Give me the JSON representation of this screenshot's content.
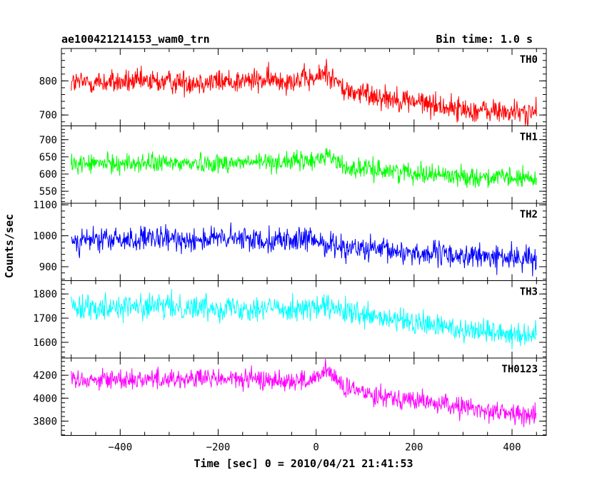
{
  "header": {
    "title": "ae100421214153_wam0_trn",
    "bin_time": "Bin time: 1.0 s"
  },
  "chart_data": {
    "type": "line",
    "title": "ae100421214153_wam0_trn",
    "bin_time_label": "Bin time: 1.0 s",
    "xlabel": "Time [sec] 0 = 2010/04/21 21:41:53",
    "ylabel": "Counts/sec",
    "xlim": [
      -520,
      470
    ],
    "x_range_data": [
      -500,
      450
    ],
    "bin_seconds": 1.0,
    "xticks": [
      -400,
      -200,
      0,
      200,
      400
    ],
    "xtick_labels": [
      "−400",
      "−200",
      "0",
      "200",
      "400"
    ],
    "panels": [
      {
        "name": "TH0",
        "color": "#ff0000",
        "ylim": [
          668,
          895
        ],
        "yticks": [
          700,
          800
        ],
        "ytick_labels": [
          "700",
          "800"
        ],
        "profile": [
          [
            -500,
            795
          ],
          [
            -200,
            798
          ],
          [
            0,
            805
          ],
          [
            20,
            830
          ],
          [
            60,
            770
          ],
          [
            200,
            740
          ],
          [
            300,
            715
          ],
          [
            450,
            705
          ]
        ],
        "noise_amplitude": 38
      },
      {
        "name": "TH1",
        "color": "#00ff00",
        "ylim": [
          515,
          740
        ],
        "yticks": [
          550,
          600,
          650,
          700
        ],
        "ytick_labels": [
          "550",
          "600",
          "650",
          "700"
        ],
        "profile": [
          [
            -500,
            630
          ],
          [
            -200,
            632
          ],
          [
            0,
            638
          ],
          [
            20,
            660
          ],
          [
            60,
            618
          ],
          [
            200,
            605
          ],
          [
            300,
            593
          ],
          [
            450,
            585
          ]
        ],
        "noise_amplitude": 30
      },
      {
        "name": "TH2",
        "color": "#0000ff",
        "ylim": [
          855,
          1105
        ],
        "yticks": [
          900,
          1000,
          1100
        ],
        "ytick_labels": [
          "900",
          "1000",
          "1100"
        ],
        "profile": [
          [
            -500,
            985
          ],
          [
            -200,
            990
          ],
          [
            0,
            985
          ],
          [
            20,
            975
          ],
          [
            100,
            955
          ],
          [
            200,
            945
          ],
          [
            300,
            935
          ],
          [
            450,
            925
          ]
        ],
        "noise_amplitude": 42
      },
      {
        "name": "TH3",
        "color": "#00ffff",
        "ylim": [
          1535,
          1855
        ],
        "yticks": [
          1600,
          1700,
          1800
        ],
        "ytick_labels": [
          "1600",
          "1700",
          "1800"
        ],
        "profile": [
          [
            -500,
            1750
          ],
          [
            -200,
            1745
          ],
          [
            0,
            1740
          ],
          [
            20,
            1745
          ],
          [
            100,
            1705
          ],
          [
            200,
            1680
          ],
          [
            300,
            1655
          ],
          [
            450,
            1630
          ]
        ],
        "noise_amplitude": 55
      },
      {
        "name": "TH0123",
        "color": "#ff00ff",
        "ylim": [
          3675,
          4350
        ],
        "yticks": [
          3800,
          4000,
          4200
        ],
        "ytick_labels": [
          "3800",
          "4000",
          "4200"
        ],
        "profile": [
          [
            -500,
            4165
          ],
          [
            -200,
            4170
          ],
          [
            0,
            4150
          ],
          [
            20,
            4260
          ],
          [
            60,
            4080
          ],
          [
            200,
            3980
          ],
          [
            300,
            3920
          ],
          [
            450,
            3840
          ]
        ],
        "noise_amplitude": 95
      }
    ]
  }
}
